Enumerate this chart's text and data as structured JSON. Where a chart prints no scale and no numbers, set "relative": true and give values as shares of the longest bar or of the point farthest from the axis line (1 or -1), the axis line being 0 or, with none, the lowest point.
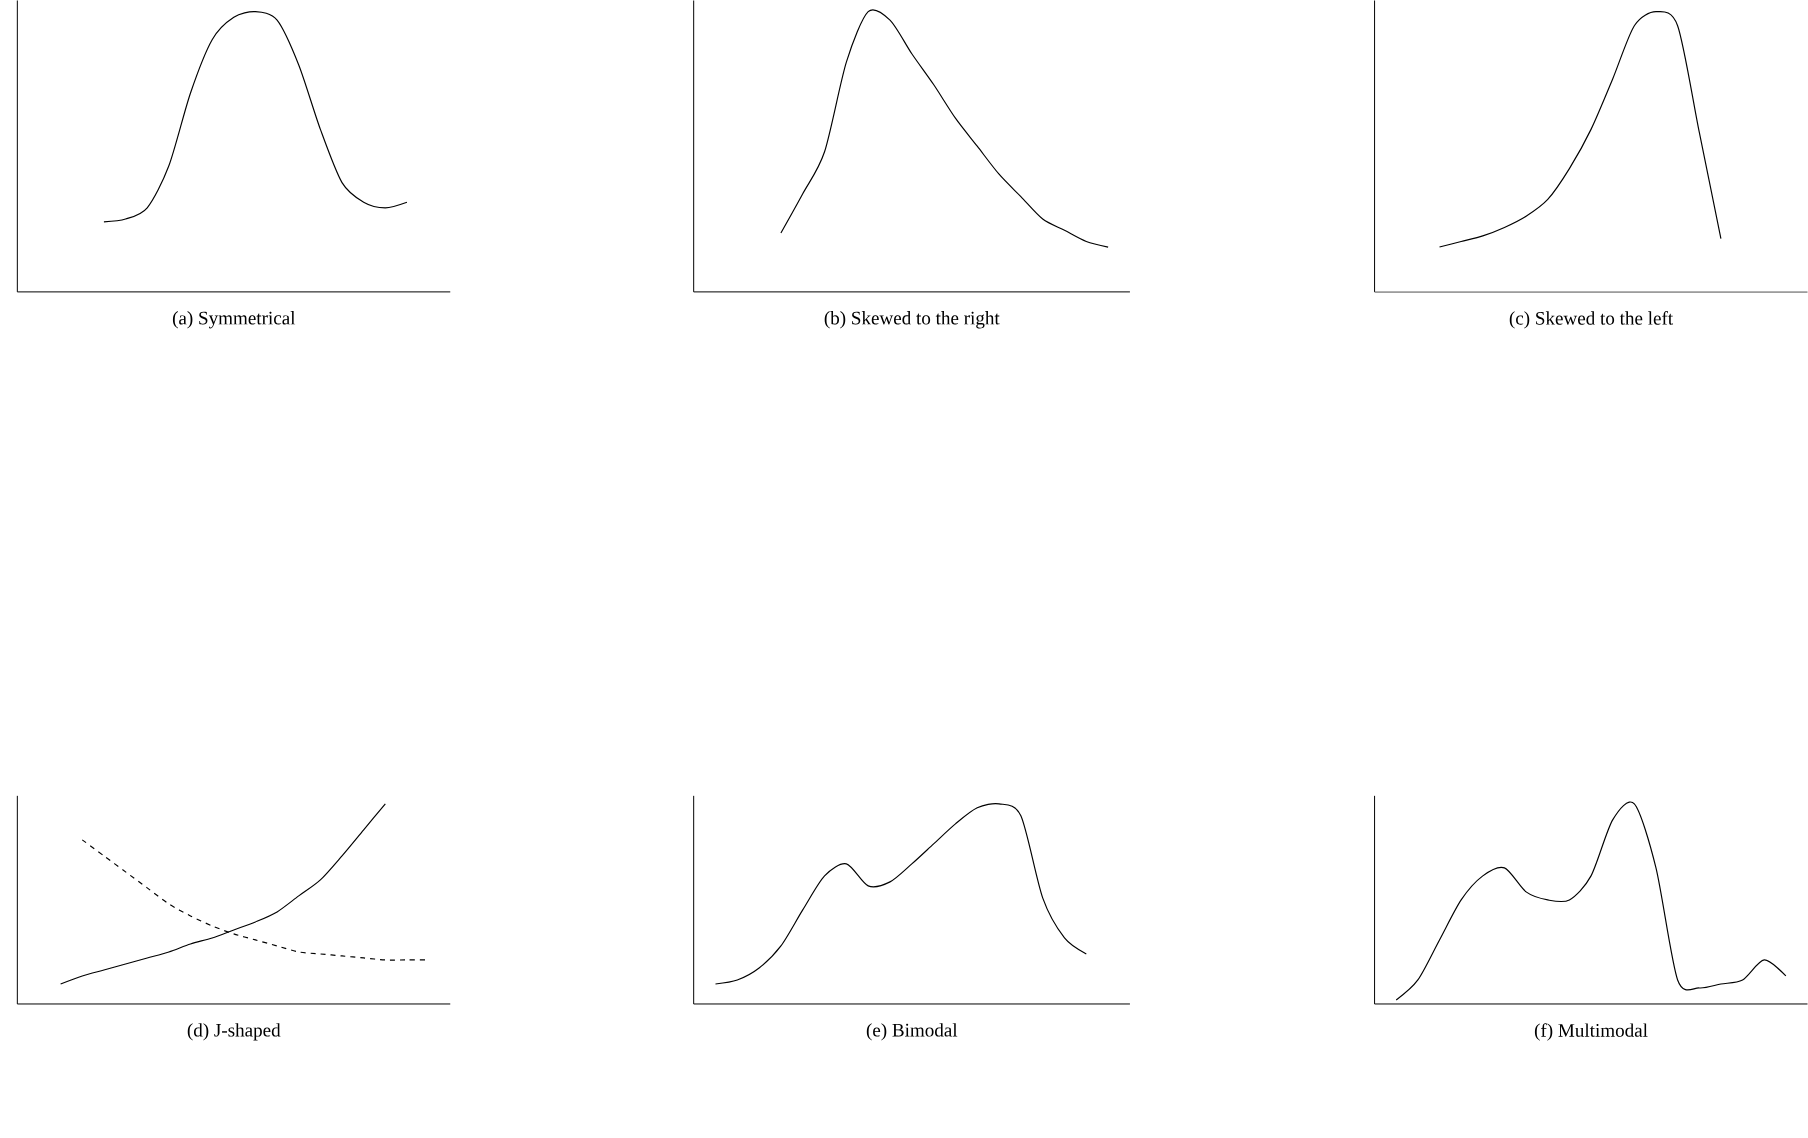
{
  "chart_data": [
    {
      "type": "line",
      "title": "(a) Symmetrical",
      "relative": true,
      "categories": [
        null,
        null,
        null,
        null,
        null,
        null,
        null,
        null,
        null,
        null,
        null,
        null,
        null,
        null,
        null,
        null,
        null,
        null,
        null,
        null,
        null
      ],
      "series": [
        {
          "color": "#000000",
          "values": [
            null,
            null,
            null,
            null,
            0.25,
            0.26,
            0.3,
            0.45,
            0.71,
            0.9,
            0.98,
            1,
            0.97,
            0.81,
            0.58,
            0.39,
            0.32,
            0.3,
            0.32,
            null,
            null
          ]
        }
      ]
    },
    {
      "type": "line",
      "title": "(b) Skewed to the right",
      "relative": true,
      "categories": [
        null,
        null,
        null,
        null,
        null,
        null,
        null,
        null,
        null,
        null,
        null,
        null,
        null,
        null,
        null,
        null,
        null,
        null,
        null,
        null,
        null
      ],
      "series": [
        {
          "color": "#000000",
          "values": [
            null,
            null,
            null,
            null,
            0.21,
            0.35,
            0.5,
            0.82,
            1.0,
            0.97,
            0.85,
            0.74,
            0.62,
            0.52,
            0.42,
            0.34,
            0.26,
            0.22,
            0.18,
            0.16,
            null
          ]
        }
      ]
    },
    {
      "type": "line",
      "title": "(c) Skewed to the left",
      "relative": true,
      "categories": [
        null,
        null,
        null,
        null,
        null,
        null,
        null,
        null,
        null,
        null,
        null,
        null,
        null,
        null,
        null,
        null,
        null,
        null,
        null,
        null,
        null
      ],
      "series": [
        {
          "color": "#000000",
          "values": [
            null,
            null,
            null,
            0.16,
            0.18,
            0.2,
            0.23,
            0.27,
            0.33,
            0.44,
            0.58,
            0.76,
            0.95,
            1,
            0.95,
            0.57,
            0.19,
            null,
            null,
            null,
            null
          ]
        }
      ]
    },
    {
      "type": "line",
      "title": "(d) J-shaped",
      "relative": true,
      "categories": [
        null,
        null,
        null,
        null,
        null,
        null,
        null,
        null,
        null,
        null,
        null,
        null,
        null,
        null,
        null,
        null,
        null,
        null,
        null,
        null,
        null
      ],
      "series": [
        {
          "color": "#000000",
          "line_style": "solid",
          "values": [
            null,
            null,
            0.1,
            0.14,
            0.17,
            0.2,
            0.23,
            0.26,
            0.3,
            0.33,
            0.37,
            0.41,
            0.46,
            0.54,
            0.62,
            0.74,
            0.87,
            1.0,
            null,
            null,
            null
          ]
        },
        {
          "color": "#000000",
          "line_style": "dashed",
          "values": [
            null,
            null,
            null,
            0.82,
            0.74,
            0.66,
            0.58,
            0.5,
            0.44,
            0.39,
            0.35,
            0.32,
            0.29,
            0.26,
            0.25,
            0.24,
            0.23,
            0.22,
            0.22,
            0.22,
            null
          ]
        }
      ]
    },
    {
      "type": "line",
      "title": "(e) Bimodal",
      "relative": true,
      "categories": [
        null,
        null,
        null,
        null,
        null,
        null,
        null,
        null,
        null,
        null,
        null,
        null,
        null,
        null,
        null,
        null,
        null,
        null,
        null,
        null,
        null
      ],
      "series": [
        {
          "color": "#000000",
          "values": [
            null,
            0.1,
            0.12,
            0.18,
            0.29,
            0.47,
            0.64,
            0.7,
            0.59,
            0.61,
            0.7,
            0.8,
            0.9,
            0.98,
            1.0,
            0.94,
            0.53,
            0.33,
            0.25,
            null,
            null
          ]
        }
      ]
    },
    {
      "type": "line",
      "title": "(f) Multimodal",
      "relative": true,
      "categories": [
        null,
        null,
        null,
        null,
        null,
        null,
        null,
        null,
        null,
        null,
        null,
        null,
        null,
        null,
        null,
        null,
        null,
        null,
        null,
        null,
        null
      ],
      "series": [
        {
          "color": "#000000",
          "values": [
            null,
            0.02,
            0.12,
            0.32,
            0.52,
            0.64,
            0.68,
            0.56,
            0.52,
            0.52,
            0.64,
            0.92,
            1.0,
            0.68,
            0.12,
            0.08,
            0.1,
            0.12,
            0.22,
            0.14,
            null
          ]
        }
      ]
    }
  ]
}
